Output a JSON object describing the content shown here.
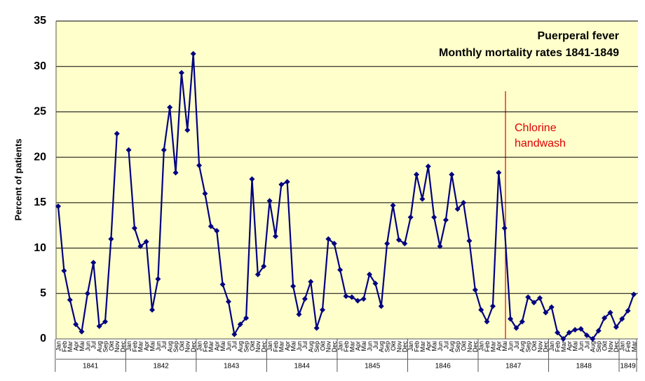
{
  "chart_data": {
    "type": "line",
    "title": [
      "Puerperal fever",
      "Monthly mortality rates 1841-1849"
    ],
    "y_label": "Percent of patients",
    "annotation": [
      "Chlorine",
      "handwash"
    ],
    "categories": [
      "Jan",
      "Feb",
      "Mar",
      "Apr",
      "Mai",
      "Jun",
      "Jul",
      "Aug",
      "Sep",
      "Okt",
      "Nov",
      "Dec",
      "Jan",
      "Feb",
      "Mar",
      "Apr",
      "Mai",
      "Jun",
      "Jul",
      "Aug",
      "Sep",
      "Okt",
      "Nov",
      "Dec",
      "Jan",
      "Feb",
      "Mar",
      "Apr",
      "Mai",
      "Jun",
      "Jul",
      "Aug",
      "Sep",
      "Okt",
      "Nov",
      "Dec",
      "Jan",
      "Feb",
      "Mar",
      "Apr",
      "Mai",
      "Jun",
      "Jul",
      "Aug",
      "Sep",
      "Okt",
      "Nov",
      "Dec",
      "Jan",
      "Feb",
      "Mar",
      "Apr",
      "Mai",
      "Jun",
      "Jul",
      "Aug",
      "Sep",
      "Okt",
      "Nov",
      "Dec",
      "Jan",
      "Feb",
      "Mar",
      "Apr",
      "Mai",
      "Jun",
      "Jul",
      "Aug",
      "Sep",
      "Okt",
      "Nov",
      "Dec",
      "Jan",
      "Feb",
      "Mar",
      "Apr",
      "Mai",
      "Jun",
      "Jul",
      "Aug",
      "Sep",
      "Okt",
      "Nov",
      "Dec",
      "Jan",
      "Feb",
      "Mar",
      "Apr",
      "Mai",
      "Jun",
      "Jul",
      "Aug",
      "Sep",
      "Okt",
      "Nov",
      "Dec",
      "Jan",
      "Feb",
      "Mar"
    ],
    "years": [
      "1841",
      "1842",
      "1843",
      "1844",
      "1845",
      "1846",
      "1847",
      "1848",
      "1849"
    ],
    "series": [
      {
        "name": "Mortality",
        "color": "#000080",
        "values": [
          14.6,
          7.5,
          4.3,
          1.6,
          0.8,
          5.0,
          8.4,
          1.4,
          1.9,
          11.0,
          22.6,
          null,
          20.8,
          12.2,
          10.2,
          10.7,
          3.2,
          6.6,
          20.8,
          25.5,
          18.3,
          29.3,
          23.0,
          31.4,
          19.1,
          16.0,
          12.4,
          11.9,
          6.0,
          4.1,
          0.5,
          1.6,
          2.3,
          17.6,
          7.1,
          8.0,
          15.2,
          11.3,
          17.0,
          17.3,
          5.8,
          2.7,
          4.4,
          6.3,
          1.2,
          3.2,
          11.0,
          10.5,
          7.6,
          4.7,
          4.6,
          4.2,
          4.4,
          7.1,
          6.1,
          3.6,
          10.5,
          14.7,
          10.9,
          10.5,
          13.4,
          18.1,
          15.4,
          19.0,
          13.4,
          10.2,
          13.1,
          18.1,
          14.3,
          15.0,
          10.8,
          5.4,
          3.2,
          1.9,
          3.6,
          18.3,
          12.2,
          2.2,
          1.2,
          1.9,
          4.6,
          4.0,
          4.5,
          2.9,
          3.5,
          0.7,
          0.0,
          0.7,
          1.0,
          1.1,
          0.4,
          0.0,
          0.9,
          2.3,
          2.9,
          1.3,
          2.2,
          3.1,
          4.9
        ]
      }
    ],
    "ylim": [
      0,
      35
    ],
    "yticks": [
      0,
      5,
      10,
      15,
      20,
      25,
      30,
      35
    ],
    "grid": true,
    "background": "#ffffcc",
    "annotation_color": "#dd0000"
  }
}
